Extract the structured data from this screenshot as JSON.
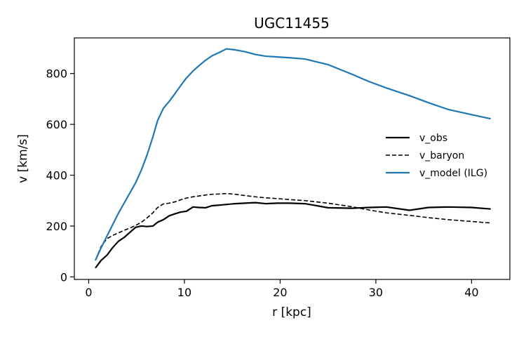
{
  "chart_data": {
    "type": "line",
    "title": "UGC11455",
    "xlabel": "r [kpc]",
    "ylabel": "v [km/s]",
    "xlim": [
      -1.5,
      44.0
    ],
    "ylim": [
      -10,
      940
    ],
    "xticks": [
      0,
      10,
      20,
      30,
      40
    ],
    "yticks": [
      0,
      200,
      400,
      600,
      800
    ],
    "grid": false,
    "legend_position": "right",
    "series": [
      {
        "name": "v_obs",
        "color": "#000000",
        "style": "solid",
        "x": [
          0.7,
          1.3,
          1.9,
          2.5,
          3.1,
          3.7,
          4.3,
          4.9,
          5.5,
          6.1,
          6.7,
          7.2,
          7.8,
          8.4,
          9.0,
          9.6,
          10.2,
          10.9,
          11.5,
          12.2,
          12.9,
          13.6,
          14.4,
          15.3,
          16.3,
          17.4,
          18.5,
          19.7,
          21.0,
          22.6,
          25.0,
          27.5,
          29.3,
          31.1,
          33.5,
          35.5,
          37.6,
          40.0,
          42.0
        ],
        "y": [
          35,
          65,
          85,
          115,
          140,
          155,
          175,
          195,
          200,
          198,
          200,
          215,
          225,
          240,
          248,
          255,
          258,
          275,
          273,
          272,
          280,
          282,
          285,
          288,
          290,
          292,
          288,
          290,
          290,
          288,
          272,
          270,
          273,
          275,
          262,
          273,
          275,
          273,
          267
        ]
      },
      {
        "name": "v_baryon",
        "color": "#000000",
        "style": "dashed",
        "x": [
          0.7,
          1.3,
          1.9,
          2.5,
          3.1,
          3.7,
          4.3,
          4.9,
          5.5,
          6.1,
          6.7,
          7.2,
          7.8,
          8.4,
          9.0,
          9.6,
          10.2,
          10.9,
          11.5,
          12.2,
          12.9,
          13.6,
          14.4,
          15.3,
          16.3,
          17.4,
          18.5,
          19.7,
          21.0,
          22.6,
          25.0,
          27.5,
          29.3,
          31.1,
          33.5,
          35.5,
          37.6,
          40.0,
          42.0
        ],
        "y": [
          65,
          120,
          150,
          163,
          173,
          183,
          192,
          202,
          215,
          232,
          252,
          273,
          287,
          290,
          295,
          303,
          310,
          315,
          318,
          322,
          325,
          326,
          328,
          325,
          320,
          315,
          311,
          308,
          304,
          300,
          290,
          276,
          263,
          252,
          242,
          233,
          225,
          218,
          212
        ]
      },
      {
        "name": "v_model (ILG)",
        "color": "#1f77b4",
        "style": "solid",
        "x": [
          0.7,
          1.3,
          1.9,
          2.5,
          3.1,
          3.7,
          4.3,
          4.9,
          5.5,
          6.1,
          6.7,
          7.2,
          7.8,
          8.4,
          9.0,
          9.6,
          10.2,
          10.9,
          11.5,
          12.2,
          12.9,
          13.6,
          14.4,
          15.3,
          16.3,
          17.4,
          18.5,
          19.7,
          21.0,
          22.6,
          25.0,
          27.5,
          29.3,
          31.1,
          33.5,
          35.5,
          37.6,
          40.0,
          42.0
        ],
        "y": [
          65,
          115,
          160,
          205,
          250,
          290,
          330,
          370,
          420,
          480,
          550,
          615,
          663,
          690,
          720,
          752,
          782,
          810,
          830,
          852,
          870,
          882,
          897,
          893,
          886,
          875,
          868,
          865,
          862,
          857,
          835,
          797,
          768,
          743,
          713,
          685,
          658,
          638,
          622
        ]
      }
    ]
  }
}
